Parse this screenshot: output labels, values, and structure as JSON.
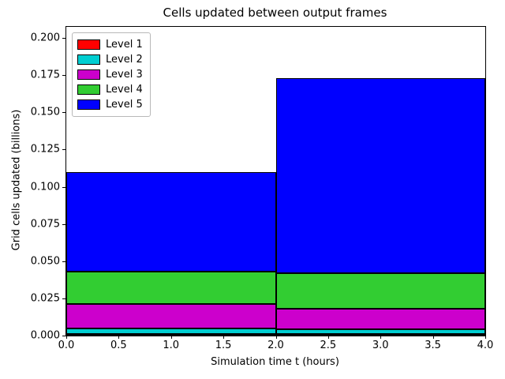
{
  "chart_data": {
    "type": "bar",
    "stacked": true,
    "title": "Cells updated between output frames",
    "xlabel": "Simulation time t (hours)",
    "ylabel": "Grid cells updated (billions)",
    "xlim": [
      0,
      4
    ],
    "ylim": [
      0,
      0.2075
    ],
    "x_edges": [
      0,
      2,
      4
    ],
    "xticks": [
      0.0,
      0.5,
      1.0,
      1.5,
      2.0,
      2.5,
      3.0,
      3.5,
      4.0
    ],
    "xtick_labels": [
      "0.0",
      "0.5",
      "1.0",
      "1.5",
      "2.0",
      "2.5",
      "3.0",
      "3.5",
      "4.0"
    ],
    "yticks": [
      0.0,
      0.025,
      0.05,
      0.075,
      0.1,
      0.125,
      0.15,
      0.175,
      0.2
    ],
    "ytick_labels": [
      "0.000",
      "0.025",
      "0.050",
      "0.075",
      "0.100",
      "0.125",
      "0.150",
      "0.175",
      "0.200"
    ],
    "grid": false,
    "legend_position": "upper left",
    "bar_edge_color": "#000000",
    "series": [
      {
        "name": "Level 1",
        "color": "#ff0000",
        "values": [
          0.001,
          0.001
        ]
      },
      {
        "name": "Level 2",
        "color": "#00ced1",
        "values": [
          0.004,
          0.003
        ]
      },
      {
        "name": "Level 3",
        "color": "#cc00cc",
        "values": [
          0.016,
          0.014
        ]
      },
      {
        "name": "Level 4",
        "color": "#32cd32",
        "values": [
          0.022,
          0.024
        ]
      },
      {
        "name": "Level 5",
        "color": "#0000ff",
        "values": [
          0.067,
          0.131
        ]
      }
    ],
    "stack_tops": [
      0.11,
      0.173
    ]
  }
}
